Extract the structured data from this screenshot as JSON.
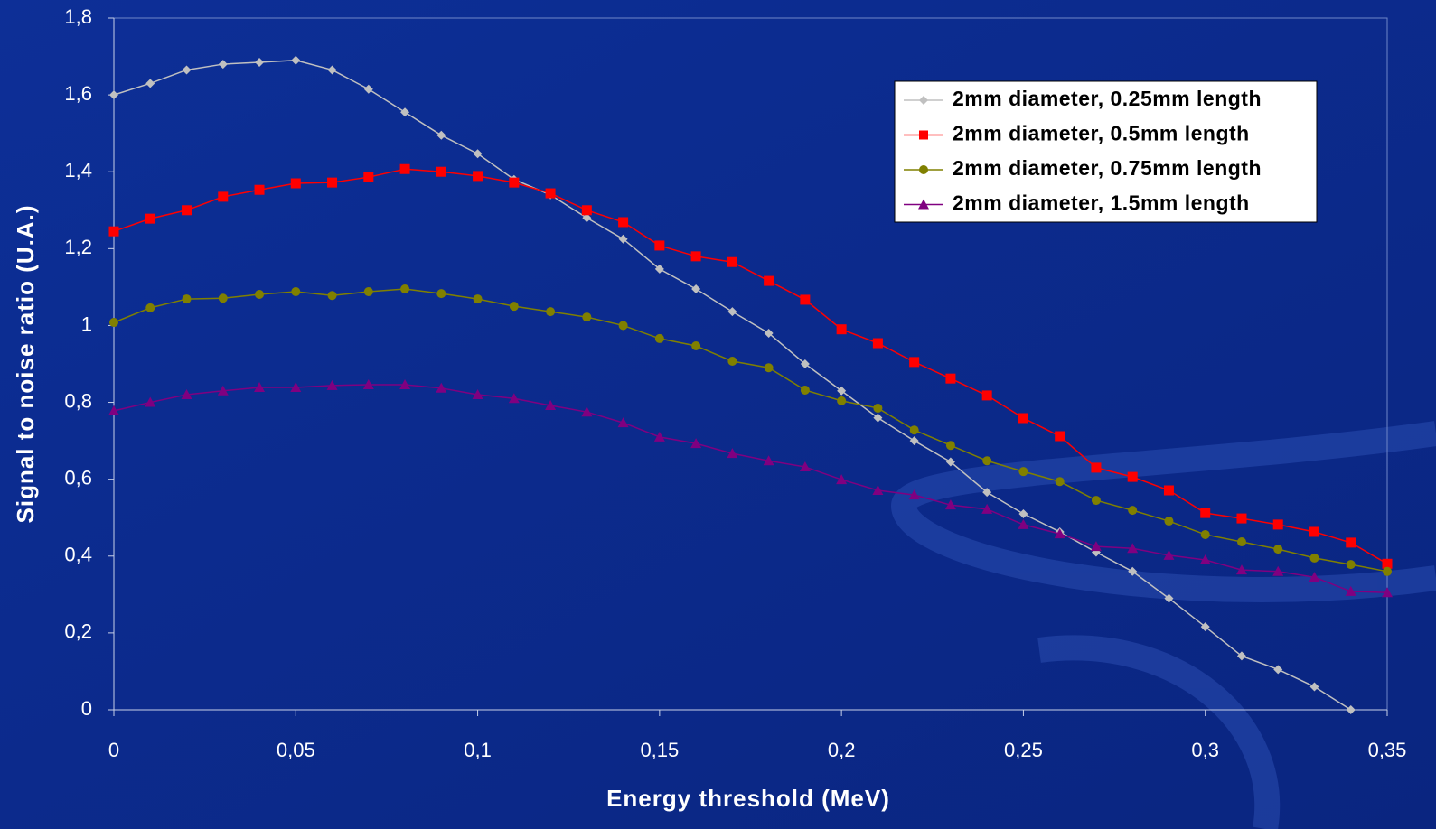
{
  "chart_data": {
    "type": "line",
    "x_label": "Energy threshold (MeV)",
    "y_label": "Signal to noise ratio (U.A.)",
    "x": [
      0,
      0.01,
      0.02,
      0.03,
      0.04,
      0.05,
      0.06,
      0.07,
      0.08,
      0.09,
      0.1,
      0.11,
      0.12,
      0.13,
      0.14,
      0.15,
      0.16,
      0.17,
      0.18,
      0.19,
      0.2,
      0.21,
      0.22,
      0.23,
      0.24,
      0.25,
      0.26,
      0.27,
      0.28,
      0.29,
      0.3,
      0.31,
      0.32,
      0.33,
      0.34,
      0.35
    ],
    "series": [
      {
        "name": "2mm diameter, 0.25mm length",
        "color": "#c0c0c0",
        "marker": "diamond",
        "values": [
          1.6,
          1.63,
          1.665,
          1.68,
          1.685,
          1.69,
          1.665,
          1.615,
          1.555,
          1.495,
          1.447,
          1.38,
          1.34,
          1.28,
          1.225,
          1.147,
          1.095,
          1.036,
          0.98,
          0.9,
          0.83,
          0.76,
          0.7,
          0.645,
          0.566,
          0.51,
          0.463,
          0.41,
          0.36,
          0.29,
          0.216,
          0.14,
          0.105,
          0.06,
          0,
          null
        ]
      },
      {
        "name": "2mm diameter, 0.5mm length",
        "color": "#ff0000",
        "marker": "square",
        "values": [
          1.245,
          1.278,
          1.3,
          1.335,
          1.353,
          1.37,
          1.372,
          1.386,
          1.407,
          1.4,
          1.389,
          1.372,
          1.344,
          1.3,
          1.269,
          1.208,
          1.18,
          1.165,
          1.116,
          1.067,
          0.99,
          0.954,
          0.905,
          0.862,
          0.818,
          0.759,
          0.712,
          0.63,
          0.606,
          0.571,
          0.512,
          0.498,
          0.482,
          0.463,
          0.435,
          0.38
        ]
      },
      {
        "name": "2mm diameter, 0.75mm length",
        "color": "#808000",
        "marker": "circle",
        "values": [
          1.008,
          1.046,
          1.069,
          1.071,
          1.081,
          1.088,
          1.078,
          1.088,
          1.095,
          1.083,
          1.069,
          1.05,
          1.036,
          1.022,
          1.0,
          0.966,
          0.947,
          0.907,
          0.89,
          0.832,
          0.804,
          0.785,
          0.728,
          0.688,
          0.648,
          0.62,
          0.594,
          0.545,
          0.519,
          0.491,
          0.456,
          0.437,
          0.418,
          0.395,
          0.378,
          0.36
        ]
      },
      {
        "name": "2mm diameter, 1.5mm length",
        "color": "#800080",
        "marker": "triangle",
        "values": [
          0.778,
          0.8,
          0.82,
          0.83,
          0.839,
          0.839,
          0.844,
          0.846,
          0.846,
          0.837,
          0.82,
          0.81,
          0.792,
          0.775,
          0.747,
          0.71,
          0.693,
          0.667,
          0.648,
          0.632,
          0.599,
          0.571,
          0.559,
          0.533,
          0.522,
          0.482,
          0.458,
          0.425,
          0.42,
          0.402,
          0.39,
          0.364,
          0.36,
          0.345,
          0.308,
          0.305
        ]
      }
    ],
    "xlim": [
      0,
      0.35
    ],
    "xticks": [
      0,
      {
        "value": 0.05,
        "label": "0,05"
      },
      {
        "value": 0.1,
        "label": "0,1"
      },
      {
        "value": 0.15,
        "label": "0,15"
      },
      {
        "value": 0.2,
        "label": "0,2"
      },
      {
        "value": 0.25,
        "label": "0,25"
      },
      {
        "value": 0.3,
        "label": "0,3"
      },
      {
        "value": 0.35,
        "label": "0,35"
      }
    ],
    "ylim": [
      0,
      1.8
    ],
    "yticks": [
      0,
      {
        "value": 0.2,
        "label": "0,2"
      },
      {
        "value": 0.4,
        "label": "0,4"
      },
      {
        "value": 0.6,
        "label": "0,6"
      },
      {
        "value": 0.8,
        "label": "0,8"
      },
      1,
      {
        "value": 1.2,
        "label": "1,2"
      },
      {
        "value": 1.4,
        "label": "1,4"
      },
      {
        "value": 1.6,
        "label": "1,6"
      },
      {
        "value": 1.8,
        "label": "1,8"
      }
    ],
    "grid": false,
    "legend": "top-right"
  }
}
